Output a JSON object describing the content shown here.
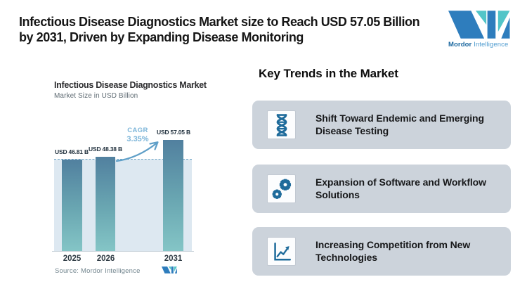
{
  "colors": {
    "accent_blue": "#1e6b9b",
    "card_bg": "#ccd3db",
    "bar_top": "#51809f",
    "bar_bottom": "#84c5c6",
    "plot_bg": "#dde8f1",
    "dashed_line": "#74a9c9",
    "cagr_text": "#7cb5d9",
    "logo_blue": "#2e7dbd",
    "logo_teal": "#52c5c8"
  },
  "header": {
    "title_line1": "Infectious Disease Diagnostics Market size to Reach USD 57.05 Billion",
    "title_line2": "by 2031, Driven by Expanding Disease Monitoring",
    "logo_text_bold": "Mordor",
    "logo_text_light": "Intelligence"
  },
  "chart_data": {
    "type": "bar",
    "title": "Infectious Disease Diagnostics Market",
    "subtitle": "Market Size in USD Billion",
    "categories": [
      "2025",
      "2026",
      "2031"
    ],
    "values": [
      46.81,
      48.38,
      57.05
    ],
    "bar_labels": [
      "USD 46.81 B",
      "USD 48.38 B",
      "USD 57.05 B"
    ],
    "cagr_label": "CAGR",
    "cagr_value": "3.35%",
    "reference_line_value": 46.81,
    "ylim": [
      0,
      60
    ],
    "grid": false,
    "legend": false,
    "source": "Source: Mordor Intelligence"
  },
  "trends": {
    "heading": "Key Trends in the Market",
    "items": [
      {
        "icon": "dna-icon",
        "text": "Shift Toward Endemic and Emerging Disease Testing"
      },
      {
        "icon": "gears-icon",
        "text": "Expansion of Software and Workflow Solutions"
      },
      {
        "icon": "line-chart-icon",
        "text": "Increasing Competition from New Technologies"
      }
    ]
  }
}
